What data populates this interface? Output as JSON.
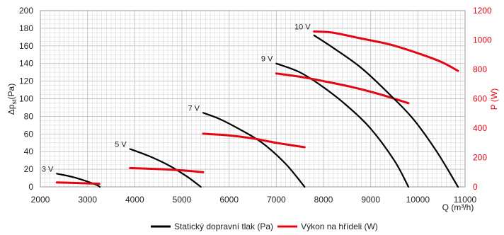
{
  "chart_data": {
    "type": "line",
    "xlabel": "Q (m³/h)",
    "ylabel_left": "Δp",
    "ylabel_left_sub": "st",
    "ylabel_left_unit": "(Pa)",
    "ylabel_right": "P (W)",
    "xlim": [
      2000,
      11000
    ],
    "ylim_left": [
      0,
      200
    ],
    "ylim_right": [
      0,
      1200
    ],
    "x_ticks": [
      "2000",
      "3000",
      "4000",
      "5000",
      "6000",
      "7000",
      "8000",
      "9000",
      "10000",
      "11000"
    ],
    "y_left_ticks": [
      "0",
      "20",
      "40",
      "60",
      "80",
      "100",
      "120",
      "140",
      "160",
      "180",
      "200"
    ],
    "y_right_ticks": [
      "0",
      "200",
      "400",
      "600",
      "800",
      "1000",
      "1200"
    ],
    "grid": true,
    "legend_position": "bottom",
    "legend": [
      {
        "label": "Statický dopravní tlak (Pa)",
        "color": "#000000"
      },
      {
        "label": "Výkon na hřídeli (W)",
        "color": "#e30613"
      }
    ],
    "colors": {
      "pressure": "#000000",
      "power": "#e30613",
      "grid": "#bfbfbf"
    },
    "curves": [
      {
        "label": "3 V",
        "pressure": {
          "x": [
            2350,
            2700,
            3000,
            3200,
            3260
          ],
          "y": [
            15,
            11,
            6,
            2,
            0
          ]
        },
        "power": {
          "x": [
            2350,
            2800,
            3250
          ],
          "y": [
            30,
            26,
            21
          ]
        }
      },
      {
        "label": "5 V",
        "pressure": {
          "x": [
            3900,
            4300,
            4700,
            5100,
            5400
          ],
          "y": [
            43,
            35,
            25,
            12,
            0
          ]
        },
        "power": {
          "x": [
            3900,
            4600,
            5100,
            5450
          ],
          "y": [
            128,
            120,
            110,
            100
          ]
        }
      },
      {
        "label": "7 V",
        "pressure": {
          "x": [
            5450,
            5800,
            6200,
            6700,
            7200,
            7600
          ],
          "y": [
            84,
            77,
            66,
            50,
            26,
            0
          ]
        },
        "power": {
          "x": [
            5450,
            6000,
            6500,
            7000,
            7600
          ],
          "y": [
            362,
            350,
            330,
            300,
            270
          ]
        }
      },
      {
        "label": "9 V",
        "pressure": {
          "x": [
            7000,
            7500,
            8000,
            8500,
            9000,
            9500,
            9800
          ],
          "y": [
            140,
            130,
            113,
            92,
            66,
            30,
            0
          ]
        },
        "power": {
          "x": [
            7000,
            7500,
            8000,
            8600,
            9200,
            9800
          ],
          "y": [
            772,
            750,
            720,
            680,
            630,
            570
          ]
        }
      },
      {
        "label": "10 V",
        "pressure": {
          "x": [
            7800,
            8200,
            8800,
            9400,
            9900,
            10400,
            10850
          ],
          "y": [
            172,
            158,
            135,
            105,
            77,
            40,
            0
          ]
        },
        "power": {
          "x": [
            7800,
            8200,
            8800,
            9400,
            10000,
            10500,
            10850
          ],
          "y": [
            1058,
            1050,
            1010,
            970,
            910,
            850,
            790
          ]
        }
      }
    ]
  }
}
